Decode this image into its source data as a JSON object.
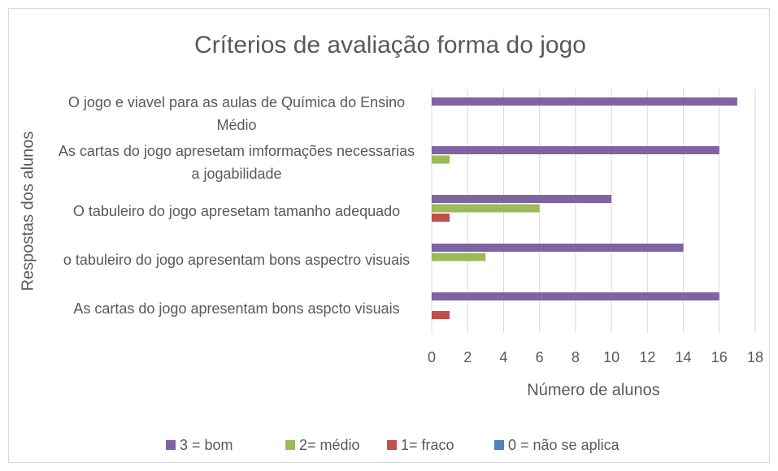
{
  "chart_data": {
    "type": "hbar",
    "title": "Críterios de avaliação forma do jogo",
    "x_label": "Número de alunos",
    "y_label": "Respostas dos alunos",
    "categories": [
      "O jogo e viavel para as aulas de Química do Ensino Médio",
      "As cartas do jogo apresetam imformações necessarias a jogabilidade",
      "O tabuleiro do jogo apresetam tamanho adequado",
      "o tabuleiro do jogo apresentam bons aspectro visuais",
      "As cartas do jogo apresentam bons aspcto visuais"
    ],
    "series": [
      {
        "name": "3 = bom",
        "color": "#8064a2",
        "values": [
          17,
          16,
          10,
          14,
          16
        ]
      },
      {
        "name": "2= médio",
        "color": "#9bbb59",
        "values": [
          0,
          1,
          6,
          3,
          0
        ]
      },
      {
        "name": "1= fraco",
        "color": "#c0504d",
        "values": [
          0,
          0,
          1,
          0,
          1
        ]
      },
      {
        "name": "0 = não se aplica",
        "color": "#4f81bd",
        "values": [
          0,
          0,
          0,
          0,
          0
        ]
      }
    ],
    "xlim": [
      0,
      18
    ],
    "xticks": [
      0,
      2,
      4,
      6,
      8,
      10,
      12,
      14,
      16,
      18
    ],
    "grid": true,
    "legend": "bottom"
  }
}
